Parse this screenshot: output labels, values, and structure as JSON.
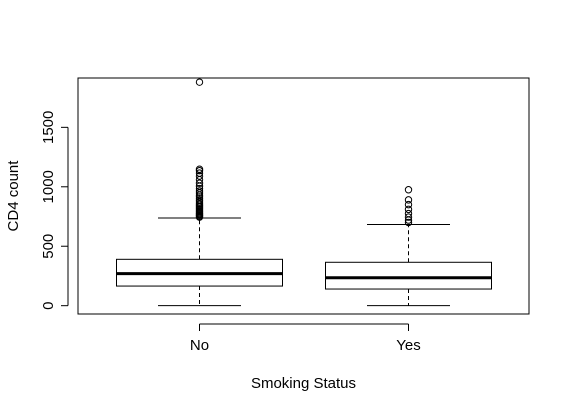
{
  "chart_data": {
    "type": "boxplot",
    "title": "",
    "xlabel": "Smoking Status",
    "ylabel": "CD4 count",
    "ylim": [
      -70,
      1915
    ],
    "yticks": [
      0,
      500,
      1000,
      1500
    ],
    "ytick_labels": [
      "0",
      "500",
      "1000",
      "1500"
    ],
    "categories": [
      "No",
      "Yes"
    ],
    "boxes": [
      {
        "category": "No",
        "whisker_low": 0,
        "q1": 165,
        "median": 270,
        "q3": 390,
        "whisker_high": 737,
        "outliers": [
          745,
          752,
          760,
          768,
          775,
          783,
          792,
          800,
          810,
          820,
          832,
          845,
          858,
          872,
          886,
          900,
          915,
          930,
          948,
          965,
          985,
          1005,
          1030,
          1060,
          1090,
          1115,
          1135,
          1148,
          1880
        ]
      },
      {
        "category": "Yes",
        "whisker_low": 0,
        "q1": 140,
        "median": 235,
        "q3": 365,
        "whisker_high": 683,
        "outliers": [
          700,
          720,
          745,
          775,
          810,
          850,
          890,
          975
        ]
      }
    ],
    "grid": false,
    "legend": "none"
  }
}
